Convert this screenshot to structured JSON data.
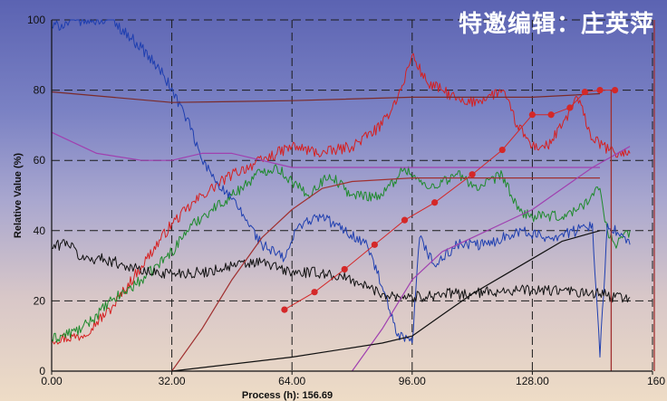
{
  "watermark": "特邀编辑：庄英萍",
  "chart_data": {
    "type": "line",
    "xlabel": "Process (h): 156.69",
    "ylabel": "Relative Value (%)",
    "xlim": [
      0,
      160
    ],
    "ylim": [
      0,
      100
    ],
    "x_ticks": [
      "0.00",
      "32.00",
      "64.00",
      "96.00",
      "128.00",
      "160"
    ],
    "y_ticks": [
      "0",
      "20",
      "40",
      "60",
      "80",
      "100"
    ],
    "grid": true,
    "legend": "none",
    "colors": {
      "red": "#d62020",
      "green": "#1e8a2c",
      "blue": "#1f3fb0",
      "black": "#111111",
      "darkred": "#a03030",
      "maroon": "#7a2a2a",
      "purple": "#a040b0",
      "point": "#d42828"
    },
    "series": [
      {
        "id": "red-noisy",
        "color": "red",
        "style": "noisy",
        "points": [
          [
            0,
            9
          ],
          [
            8,
            10
          ],
          [
            16,
            18
          ],
          [
            24,
            30
          ],
          [
            32,
            42
          ],
          [
            40,
            50
          ],
          [
            48,
            56
          ],
          [
            56,
            60
          ],
          [
            64,
            64
          ],
          [
            72,
            62
          ],
          [
            80,
            64
          ],
          [
            88,
            70
          ],
          [
            93,
            80
          ],
          [
            96,
            90
          ],
          [
            100,
            82
          ],
          [
            104,
            80
          ],
          [
            110,
            76
          ],
          [
            116,
            78
          ],
          [
            120,
            80
          ],
          [
            124,
            70
          ],
          [
            128,
            64
          ],
          [
            132,
            64
          ],
          [
            136,
            70
          ],
          [
            140,
            78
          ],
          [
            144,
            66
          ],
          [
            150,
            62
          ],
          [
            154,
            62
          ]
        ]
      },
      {
        "id": "green-noisy",
        "color": "green",
        "style": "noisy",
        "points": [
          [
            0,
            9
          ],
          [
            8,
            12
          ],
          [
            16,
            20
          ],
          [
            24,
            26
          ],
          [
            32,
            34
          ],
          [
            36,
            40
          ],
          [
            40,
            44
          ],
          [
            48,
            50
          ],
          [
            56,
            57
          ],
          [
            60,
            58
          ],
          [
            64,
            54
          ],
          [
            68,
            50
          ],
          [
            74,
            56
          ],
          [
            80,
            50
          ],
          [
            88,
            50
          ],
          [
            94,
            58
          ],
          [
            100,
            52
          ],
          [
            108,
            56
          ],
          [
            114,
            52
          ],
          [
            120,
            56
          ],
          [
            124,
            46
          ],
          [
            128,
            44
          ],
          [
            136,
            44
          ],
          [
            140,
            46
          ],
          [
            146,
            52
          ],
          [
            148,
            40
          ],
          [
            150,
            36
          ],
          [
            154,
            40
          ]
        ]
      },
      {
        "id": "blue-noisy",
        "color": "blue",
        "style": "noisy",
        "points": [
          [
            0,
            98
          ],
          [
            8,
            100
          ],
          [
            16,
            100
          ],
          [
            24,
            92
          ],
          [
            30,
            84
          ],
          [
            36,
            72
          ],
          [
            40,
            60
          ],
          [
            44,
            54
          ],
          [
            50,
            46
          ],
          [
            56,
            36
          ],
          [
            62,
            32
          ],
          [
            66,
            42
          ],
          [
            72,
            44
          ],
          [
            78,
            40
          ],
          [
            84,
            36
          ],
          [
            88,
            24
          ],
          [
            92,
            10
          ],
          [
            96,
            8
          ],
          [
            98,
            38
          ],
          [
            102,
            30
          ],
          [
            108,
            36
          ],
          [
            116,
            36
          ],
          [
            124,
            40
          ],
          [
            132,
            38
          ],
          [
            140,
            40
          ],
          [
            144,
            42
          ],
          [
            146,
            4
          ],
          [
            148,
            42
          ],
          [
            154,
            36
          ]
        ]
      },
      {
        "id": "black-noisy",
        "color": "black",
        "style": "noisy",
        "points": [
          [
            0,
            35
          ],
          [
            4,
            37
          ],
          [
            8,
            32
          ],
          [
            14,
            32
          ],
          [
            20,
            30
          ],
          [
            26,
            28
          ],
          [
            32,
            28
          ],
          [
            40,
            28
          ],
          [
            48,
            30
          ],
          [
            56,
            31
          ],
          [
            64,
            28
          ],
          [
            72,
            28
          ],
          [
            80,
            26
          ],
          [
            88,
            22
          ],
          [
            96,
            21
          ],
          [
            104,
            22
          ],
          [
            112,
            22
          ],
          [
            120,
            23
          ],
          [
            128,
            23
          ],
          [
            136,
            23
          ],
          [
            142,
            22
          ],
          [
            146,
            22
          ],
          [
            150,
            21
          ],
          [
            154,
            21
          ]
        ]
      },
      {
        "id": "maroon-flat",
        "color": "maroon",
        "style": "smooth",
        "points": [
          [
            0,
            79.5
          ],
          [
            32,
            76.5
          ],
          [
            64,
            77
          ],
          [
            96,
            78
          ],
          [
            128,
            78
          ],
          [
            146,
            79
          ]
        ]
      },
      {
        "id": "purple-upper",
        "color": "purple",
        "style": "smooth",
        "points": [
          [
            0,
            68
          ],
          [
            12,
            62
          ],
          [
            24,
            60
          ],
          [
            32,
            60
          ],
          [
            40,
            62
          ],
          [
            48,
            62
          ],
          [
            56,
            60
          ],
          [
            64,
            58
          ],
          [
            96,
            58
          ],
          [
            128,
            58
          ],
          [
            146,
            58
          ]
        ]
      },
      {
        "id": "darkred-rise",
        "color": "darkred",
        "style": "smooth",
        "points": [
          [
            32,
            0
          ],
          [
            40,
            12
          ],
          [
            48,
            26
          ],
          [
            56,
            38
          ],
          [
            64,
            46
          ],
          [
            72,
            52
          ],
          [
            80,
            54
          ],
          [
            96,
            55
          ],
          [
            128,
            55
          ],
          [
            146,
            55
          ]
        ]
      },
      {
        "id": "purple-rise",
        "color": "purple",
        "style": "smooth",
        "points": [
          [
            80,
            0
          ],
          [
            88,
            12
          ],
          [
            96,
            26
          ],
          [
            104,
            34
          ],
          [
            112,
            38
          ],
          [
            120,
            42
          ],
          [
            128,
            46
          ],
          [
            136,
            52
          ],
          [
            144,
            58
          ],
          [
            154,
            64
          ]
        ]
      },
      {
        "id": "black-rise",
        "color": "black",
        "style": "smooth",
        "points": [
          [
            32,
            0
          ],
          [
            64,
            4
          ],
          [
            88,
            8
          ],
          [
            96,
            10
          ],
          [
            104,
            16
          ],
          [
            112,
            22
          ],
          [
            120,
            27
          ],
          [
            128,
            32
          ],
          [
            136,
            37
          ],
          [
            146,
            40
          ]
        ]
      }
    ],
    "offline_points": {
      "color": "point",
      "points": [
        [
          62,
          17.5
        ],
        [
          70,
          22.5
        ],
        [
          78,
          29
        ],
        [
          86,
          36
        ],
        [
          94,
          43
        ],
        [
          102,
          48
        ],
        [
          112,
          56
        ],
        [
          120,
          63
        ],
        [
          128,
          73
        ],
        [
          133,
          73
        ],
        [
          138,
          75
        ],
        [
          142,
          79.5
        ],
        [
          146,
          80
        ],
        [
          150,
          80
        ]
      ]
    },
    "vertical_markers": [
      {
        "x": 149,
        "color": "darkred",
        "y_from": 0,
        "y_to": 80
      },
      {
        "x": 164.5,
        "color": "darkred",
        "y_from": 0,
        "y_to": 100
      }
    ]
  }
}
